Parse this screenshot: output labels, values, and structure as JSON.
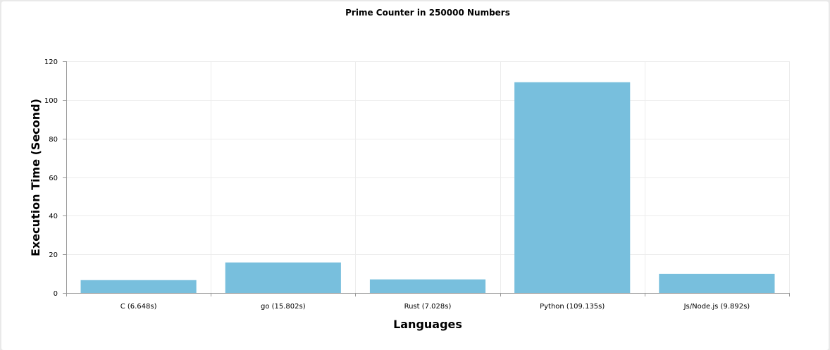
{
  "chart_data": {
    "type": "bar",
    "title": "Prime Counter in 250000 Numbers",
    "xlabel": "Languages",
    "ylabel": "Execution Time (Second)",
    "categories": [
      "C (6.648s)",
      "go (15.802s)",
      "Rust (7.028s)",
      "Python (109.135s)",
      "Js/Node.js (9.892s)"
    ],
    "values": [
      6.648,
      15.802,
      7.028,
      109.135,
      9.892
    ],
    "ylim": [
      0,
      120
    ],
    "yticks": [
      0,
      20,
      40,
      60,
      80,
      100,
      120
    ],
    "grid": true,
    "bar_color": "#78bfdd"
  }
}
